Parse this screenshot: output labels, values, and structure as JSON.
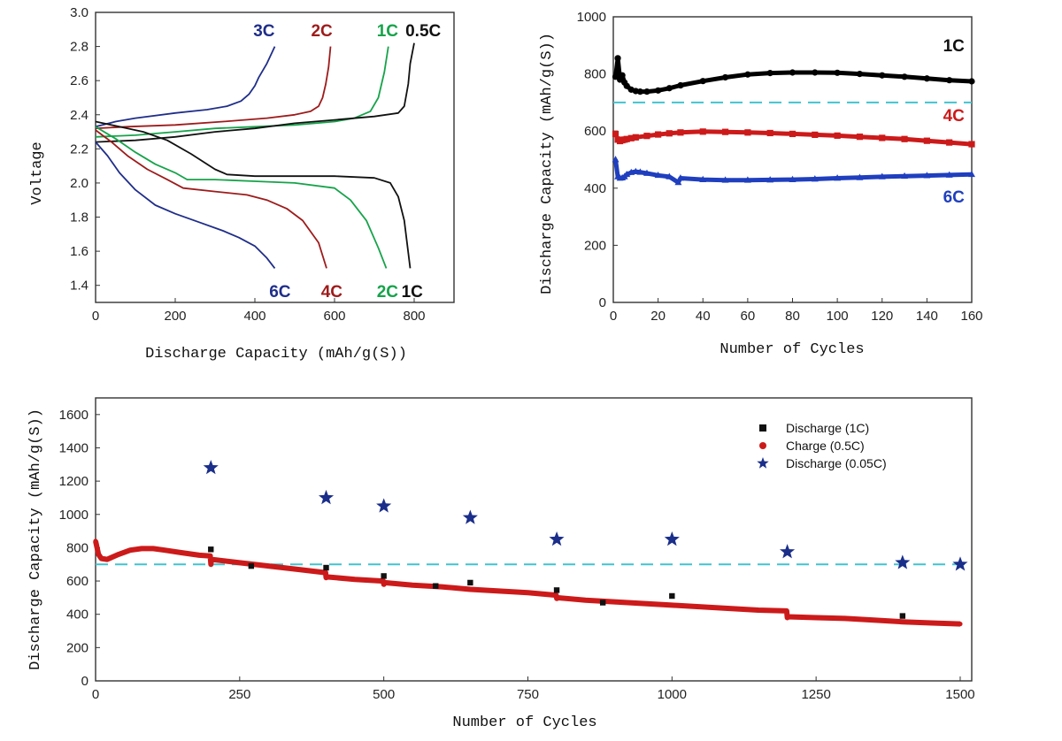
{
  "chart_data": [
    {
      "type": "line",
      "id": "voltage",
      "xlabel": "Discharge Capacity (mAh/g(S))",
      "ylabel": "Voltage",
      "xlim": [
        0,
        900
      ],
      "ylim": [
        1.3,
        3.0
      ],
      "xticks": [
        0,
        200,
        400,
        600,
        800
      ],
      "yticks": [
        1.4,
        1.6,
        1.8,
        2.0,
        2.2,
        2.4,
        2.6,
        2.8,
        3.0
      ],
      "ytick_labels": [
        "1.4",
        "1.6",
        "1.8",
        "2.0",
        "2.2",
        "2.4",
        "2.6",
        "2.8",
        "3.0"
      ],
      "series": [
        {
          "name": "3C",
          "kind": "charge",
          "color": "#1f2e8a",
          "x": [
            0,
            50,
            100,
            200,
            280,
            330,
            365,
            385,
            400,
            410,
            430,
            450
          ],
          "y": [
            2.33,
            2.36,
            2.38,
            2.41,
            2.43,
            2.45,
            2.48,
            2.52,
            2.57,
            2.62,
            2.7,
            2.8
          ]
        },
        {
          "name": "2C",
          "kind": "charge",
          "color": "#9e1b1b",
          "x": [
            0,
            80,
            200,
            320,
            430,
            500,
            540,
            560,
            570,
            578,
            585,
            590
          ],
          "y": [
            2.32,
            2.33,
            2.34,
            2.36,
            2.38,
            2.4,
            2.42,
            2.45,
            2.5,
            2.58,
            2.68,
            2.8
          ]
        },
        {
          "name": "1C",
          "kind": "charge",
          "color": "#16a34a",
          "x": [
            0,
            100,
            200,
            300,
            400,
            500,
            600,
            650,
            690,
            710,
            725,
            735
          ],
          "y": [
            2.27,
            2.28,
            2.3,
            2.32,
            2.33,
            2.34,
            2.36,
            2.38,
            2.42,
            2.5,
            2.65,
            2.8
          ]
        },
        {
          "name": "0.5C",
          "kind": "charge",
          "color": "#111111",
          "x": [
            0,
            100,
            200,
            300,
            400,
            500,
            600,
            700,
            760,
            775,
            785,
            790,
            800
          ],
          "y": [
            2.24,
            2.25,
            2.27,
            2.3,
            2.32,
            2.35,
            2.37,
            2.39,
            2.41,
            2.45,
            2.58,
            2.7,
            2.82
          ]
        },
        {
          "name": "6C",
          "kind": "discharge",
          "color": "#1f2e8a",
          "x": [
            0,
            30,
            60,
            100,
            150,
            200,
            260,
            320,
            360,
            400,
            430,
            450
          ],
          "y": [
            2.24,
            2.16,
            2.06,
            1.96,
            1.87,
            1.82,
            1.77,
            1.72,
            1.68,
            1.63,
            1.56,
            1.5
          ]
        },
        {
          "name": "4C",
          "kind": "discharge",
          "color": "#9e1b1b",
          "x": [
            0,
            40,
            80,
            130,
            180,
            220,
            300,
            380,
            430,
            480,
            520,
            560,
            580
          ],
          "y": [
            2.31,
            2.24,
            2.16,
            2.08,
            2.02,
            1.97,
            1.95,
            1.93,
            1.9,
            1.85,
            1.78,
            1.65,
            1.5
          ]
        },
        {
          "name": "2C",
          "kind": "discharge",
          "color": "#16a34a",
          "x": [
            0,
            50,
            100,
            150,
            200,
            230,
            300,
            400,
            500,
            600,
            640,
            680,
            710,
            730
          ],
          "y": [
            2.33,
            2.26,
            2.18,
            2.11,
            2.06,
            2.02,
            2.02,
            2.01,
            2.0,
            1.97,
            1.9,
            1.78,
            1.62,
            1.5
          ]
        },
        {
          "name": "1C",
          "kind": "discharge",
          "color": "#111111",
          "x": [
            0,
            60,
            120,
            180,
            240,
            300,
            330,
            400,
            500,
            600,
            700,
            740,
            760,
            775,
            790
          ],
          "y": [
            2.36,
            2.33,
            2.3,
            2.25,
            2.17,
            2.08,
            2.05,
            2.04,
            2.04,
            2.04,
            2.03,
            2.0,
            1.92,
            1.78,
            1.5
          ]
        }
      ],
      "labels": [
        {
          "text": "3C",
          "color": "#1f2e8a",
          "x": 450,
          "y": 2.86,
          "anchor": "end"
        },
        {
          "text": "2C",
          "color": "#9e1b1b",
          "x": 595,
          "y": 2.86,
          "anchor": "end"
        },
        {
          "text": "1C",
          "color": "#16a34a",
          "x": 760,
          "y": 2.86,
          "anchor": "end"
        },
        {
          "text": "0.5C",
          "color": "#111111",
          "x": 778,
          "y": 2.86,
          "anchor": "start"
        },
        {
          "text": "6C",
          "color": "#1f2e8a",
          "x": 490,
          "y": 1.33,
          "anchor": "end"
        },
        {
          "text": "4C",
          "color": "#9e1b1b",
          "x": 620,
          "y": 1.33,
          "anchor": "end"
        },
        {
          "text": "2C",
          "color": "#16a34a",
          "x": 760,
          "y": 1.33,
          "anchor": "end"
        },
        {
          "text": "1C",
          "color": "#111111",
          "x": 768,
          "y": 1.33,
          "anchor": "start"
        }
      ]
    },
    {
      "type": "scatter",
      "id": "rate",
      "xlabel": "Number of Cycles",
      "ylabel": "Discharge Capacity (mAh/g(S))",
      "xlim": [
        0,
        160
      ],
      "ylim": [
        0,
        1000
      ],
      "xticks": [
        0,
        20,
        40,
        60,
        80,
        100,
        120,
        140,
        160
      ],
      "yticks": [
        0,
        200,
        400,
        600,
        800,
        1000
      ],
      "reference_line": {
        "y": 700,
        "color": "#40c4d0"
      },
      "series": [
        {
          "name": "1C",
          "color": "#000000",
          "marker": "circle",
          "x": [
            1,
            2,
            3,
            4,
            5,
            6,
            8,
            10,
            12,
            15,
            20,
            25,
            30,
            40,
            50,
            60,
            70,
            80,
            90,
            100,
            110,
            120,
            130,
            140,
            150,
            160
          ],
          "y": [
            790,
            855,
            780,
            795,
            770,
            758,
            745,
            740,
            738,
            738,
            742,
            750,
            760,
            775,
            788,
            798,
            803,
            805,
            805,
            804,
            800,
            795,
            790,
            784,
            778,
            774
          ]
        },
        {
          "name": "4C",
          "color": "#cc1a1a",
          "marker": "square",
          "x": [
            1,
            2,
            3,
            4,
            5,
            6,
            8,
            10,
            15,
            20,
            25,
            30,
            40,
            50,
            60,
            70,
            80,
            90,
            100,
            110,
            120,
            130,
            140,
            150,
            160
          ],
          "y": [
            590,
            570,
            565,
            568,
            570,
            572,
            575,
            578,
            583,
            588,
            592,
            595,
            598,
            597,
            595,
            593,
            590,
            587,
            584,
            580,
            576,
            572,
            566,
            560,
            554
          ]
        },
        {
          "name": "6C",
          "color": "#1f3fbf",
          "marker": "triangle",
          "x": [
            1,
            2,
            3,
            4,
            5,
            6,
            8,
            10,
            12,
            15,
            20,
            25,
            29,
            30,
            40,
            50,
            60,
            70,
            80,
            90,
            100,
            110,
            120,
            130,
            140,
            150,
            160
          ],
          "y": [
            500,
            440,
            435,
            436,
            440,
            448,
            455,
            458,
            456,
            452,
            445,
            440,
            420,
            435,
            430,
            428,
            428,
            429,
            430,
            432,
            435,
            437,
            440,
            442,
            444,
            446,
            448
          ]
        }
      ],
      "labels": [
        {
          "text": "1C",
          "color": "#111111",
          "x": 152,
          "y": 880
        },
        {
          "text": "4C",
          "color": "#cc1a1a",
          "x": 152,
          "y": 635
        },
        {
          "text": "6C",
          "color": "#1f3fbf",
          "x": 152,
          "y": 350
        }
      ]
    },
    {
      "type": "scatter",
      "id": "longterm",
      "xlabel": "Number of Cycles",
      "ylabel": "Discharge Capacity (mAh/g(S))",
      "xlim": [
        0,
        1520
      ],
      "ylim": [
        0,
        1700
      ],
      "xticks": [
        0,
        250,
        500,
        750,
        1000,
        1250,
        1500
      ],
      "yticks": [
        0,
        200,
        400,
        600,
        800,
        1000,
        1200,
        1400,
        1600
      ],
      "reference_line": {
        "y": 700,
        "color": "#40c4d0"
      },
      "legend": {
        "position": "top-right"
      },
      "series": [
        {
          "name": "Discharge (1C)",
          "color": "#111111",
          "marker": "square",
          "x": [
            200,
            270,
            400,
            500,
            590,
            650,
            800,
            880,
            1000,
            1400
          ],
          "y": [
            790,
            690,
            680,
            630,
            570,
            590,
            545,
            470,
            510,
            390
          ]
        },
        {
          "name": "Charge (0.5C)",
          "color": "#cc1a1a",
          "marker": "circle",
          "x": [
            0,
            5,
            10,
            20,
            40,
            60,
            80,
            100,
            120,
            150,
            180,
            199,
            200,
            201,
            250,
            300,
            350,
            399,
            400,
            401,
            450,
            499,
            500,
            501,
            550,
            600,
            650,
            700,
            750,
            799,
            800,
            801,
            850,
            900,
            950,
            1000,
            1050,
            1100,
            1150,
            1199,
            1200,
            1201,
            1250,
            1300,
            1350,
            1400,
            1450,
            1500
          ],
          "y": [
            840,
            760,
            735,
            730,
            760,
            785,
            795,
            795,
            785,
            770,
            755,
            750,
            700,
            730,
            710,
            690,
            670,
            650,
            620,
            625,
            610,
            600,
            580,
            590,
            575,
            565,
            550,
            540,
            530,
            515,
            495,
            500,
            485,
            475,
            465,
            455,
            445,
            435,
            425,
            420,
            380,
            385,
            380,
            375,
            365,
            355,
            348,
            342
          ]
        },
        {
          "name": "Discharge (0.05C)",
          "color": "#1a2e8a",
          "marker": "star",
          "x": [
            200,
            400,
            500,
            650,
            800,
            1000,
            1200,
            1400,
            1500
          ],
          "y": [
            1280,
            1100,
            1050,
            980,
            850,
            850,
            775,
            710,
            700
          ]
        }
      ]
    }
  ]
}
